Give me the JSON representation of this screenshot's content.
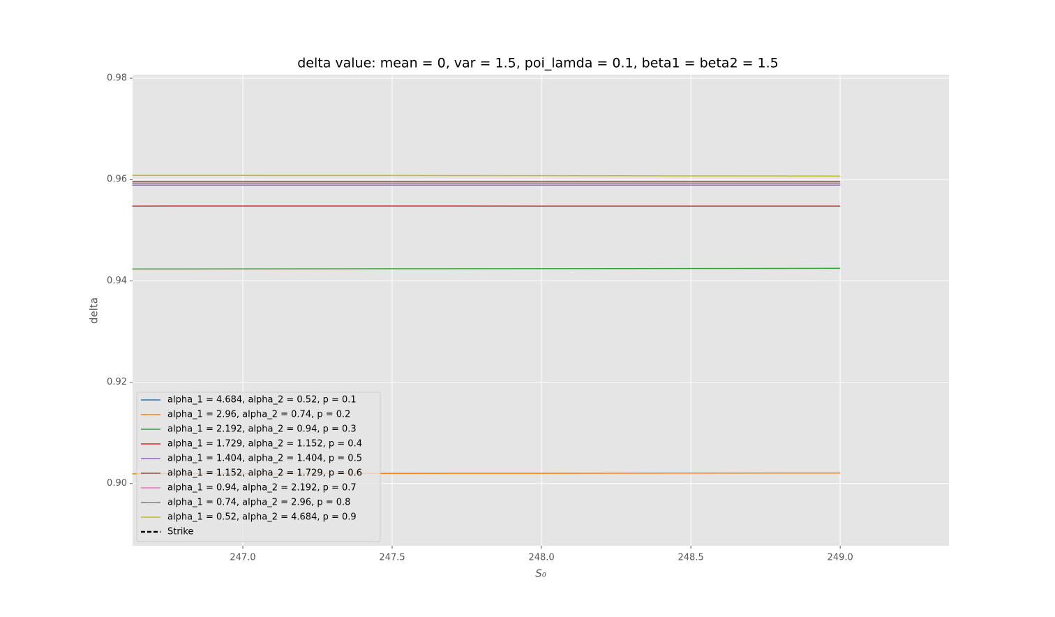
{
  "chart_data": {
    "type": "line",
    "title": "delta value:  mean = 0, var = 1.5, poi_lamda = 0.1,  beta1 =  beta2 = 1.5",
    "xlabel": "S₀",
    "ylabel": "delta",
    "x": [
      246.63,
      247.0,
      247.5,
      248.0,
      248.5,
      249.0
    ],
    "series": [
      {
        "name": "alpha_1 = 4.684, alpha_2 = 0.52, p = 0.1",
        "color": "#1f77b4",
        "values": [
          0.9589,
          0.9589,
          0.9589,
          0.9589,
          0.9589,
          0.9589
        ]
      },
      {
        "name": "alpha_1 = 2.96, alpha_2 = 0.74, p = 0.2",
        "color": "#ff7f0e",
        "values": [
          0.90193,
          0.90196,
          0.902,
          0.90202,
          0.90205,
          0.90207
        ]
      },
      {
        "name": "alpha_1 = 2.192, alpha_2 = 0.94, p = 0.3",
        "color": "#2ca02c",
        "values": [
          0.94234,
          0.94236,
          0.94239,
          0.94242,
          0.94245,
          0.94248
        ]
      },
      {
        "name": "alpha_1 = 1.729, alpha_2 = 1.152, p = 0.4",
        "color": "#d62728",
        "values": [
          0.95477,
          0.95478,
          0.95478,
          0.95477,
          0.95477,
          0.95477
        ]
      },
      {
        "name": "alpha_1 = 1.404, alpha_2 = 1.404, p = 0.5",
        "color": "#9467bd",
        "values": [
          0.9589,
          0.9589,
          0.9589,
          0.9589,
          0.9589,
          0.9589
        ]
      },
      {
        "name": "alpha_1 = 1.152, alpha_2 = 1.729, p = 0.6",
        "color": "#8c564b",
        "values": [
          0.9596,
          0.9596,
          0.9596,
          0.9596,
          0.9596,
          0.9596
        ]
      },
      {
        "name": "alpha_1 = 0.94, alpha_2 = 2.192, p = 0.7",
        "color": "#e377c2",
        "values": [
          0.9593,
          0.9593,
          0.9593,
          0.9593,
          0.9593,
          0.9593
        ]
      },
      {
        "name": "alpha_1 = 0.74, alpha_2 = 2.96, p = 0.8",
        "color": "#7f7f7f",
        "values": [
          0.9593,
          0.9593,
          0.9593,
          0.9593,
          0.9593,
          0.9593
        ]
      },
      {
        "name": "alpha_1 = 0.52, alpha_2 = 4.684, p = 0.9",
        "color": "#bcbd22",
        "values": [
          0.96083,
          0.96082,
          0.9608,
          0.96077,
          0.96073,
          0.96069
        ]
      }
    ],
    "strike": {
      "name": "Strike",
      "color": "#000000"
    },
    "xlim": [
      246.631,
      249.364
    ],
    "xticks": [
      {
        "value": 247,
        "label": "247.0"
      },
      {
        "value": 247.5,
        "label": "247.5"
      },
      {
        "value": 248,
        "label": "248.0"
      },
      {
        "value": 248.5,
        "label": "248.5"
      },
      {
        "value": 249,
        "label": "249.0"
      }
    ],
    "ylim": [
      0.8877,
      0.9807
    ],
    "yticks": [
      {
        "value": 0.9,
        "label": "0.90"
      },
      0.92,
      0.94,
      0.96,
      0.98
    ],
    "grid": true,
    "legend": "lower left"
  }
}
